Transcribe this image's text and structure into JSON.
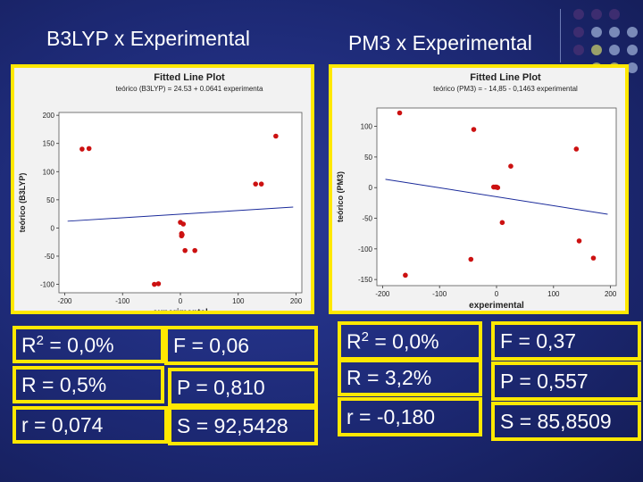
{
  "left": {
    "heading": "B3LYP x Experimental",
    "plot_title": "Fitted Line Plot",
    "equation": "teórico (B3LYP) = 24.53 + 0.0641 experimenta",
    "stats": {
      "r2": "R2 = 0,0%",
      "r": "R = 0,5%",
      "r_small": "r = 0,074",
      "f": "F = 0,06",
      "p": "P = 0,810",
      "s": "S = 92,5428"
    }
  },
  "right": {
    "heading": "PM3 x Experimental",
    "plot_title": "Fitted Line Plot",
    "equation": "teórico (PM3) = - 14,85 - 0,1463 experimental",
    "stats": {
      "r2": "R2 = 0,0%",
      "r": "R = 3,2%",
      "r_small": "r = -0,180",
      "f": "F = 0,37",
      "p": "P = 0,557",
      "s": "S = 85,8509"
    }
  },
  "colors": {
    "frame": "#ffe800",
    "point": "#cc1111",
    "fit": "#1a2a9a",
    "bg": "#1e2a7a"
  },
  "chart_data": [
    {
      "type": "scatter",
      "title": "Fitted Line Plot",
      "xlabel": "experimental",
      "ylabel": "teórico (B3LYP)",
      "xlim": [
        -210,
        210
      ],
      "ylim": [
        -115,
        205
      ],
      "xticks": [
        -200,
        -100,
        0,
        100,
        200
      ],
      "yticks": [
        -100,
        -50,
        0,
        50,
        100,
        150,
        200
      ],
      "xtick_labels": [
        "-200",
        "-100",
        "0",
        "100",
        "200"
      ],
      "ytick_labels": [
        "-100",
        "-50",
        "0",
        "50",
        "100",
        "150",
        "200"
      ],
      "fit": {
        "intercept": 24.53,
        "slope": 0.0641
      },
      "x": [
        -170,
        -158,
        -45,
        -38,
        0,
        2,
        2,
        3,
        5,
        8,
        25,
        130,
        140,
        165
      ],
      "y": [
        140,
        141,
        -100,
        -99,
        10,
        -10,
        -14,
        -12,
        7,
        -40,
        -40,
        78,
        78,
        163
      ]
    },
    {
      "type": "scatter",
      "title": "Fitted Line Plot",
      "xlabel": "experimental",
      "ylabel": "teórico (PM3)",
      "xlim": [
        -210,
        210
      ],
      "ylim": [
        -160,
        130
      ],
      "xticks": [
        -200,
        -100,
        0,
        100,
        200
      ],
      "yticks": [
        -150,
        -100,
        -50,
        0,
        50,
        100
      ],
      "xtick_labels": [
        "-200",
        "-100",
        "0",
        "100",
        "200"
      ],
      "ytick_labels": [
        "-150",
        "-100",
        "-50",
        "0",
        "50",
        "100"
      ],
      "fit": {
        "intercept": -14.85,
        "slope": -0.1463
      },
      "x": [
        -170,
        -160,
        -45,
        -40,
        -5,
        -2,
        0,
        2,
        10,
        25,
        140,
        145,
        170
      ],
      "y": [
        122,
        -143,
        -117,
        95,
        1,
        1,
        1,
        0,
        -57,
        35,
        63,
        -87,
        -115
      ]
    }
  ]
}
